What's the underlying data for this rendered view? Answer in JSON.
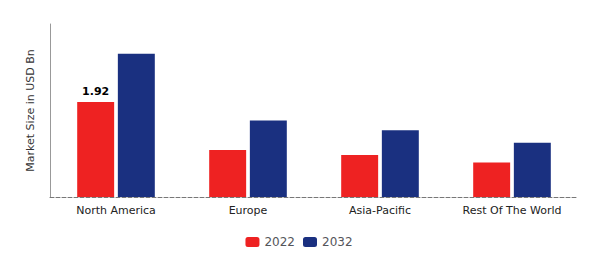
{
  "chart_data": {
    "type": "bar",
    "categories": [
      "North America",
      "Europe",
      "Asia-Pacific",
      "Rest Of The World"
    ],
    "series": [
      {
        "name": "2022",
        "color": "#ee2222",
        "values": [
          1.92,
          0.95,
          0.85,
          0.7
        ]
      },
      {
        "name": "2032",
        "color": "#1a3080",
        "values": [
          2.9,
          1.55,
          1.35,
          1.1
        ]
      }
    ],
    "ylabel": "Market Size in USD Bn",
    "ylim": [
      0,
      3.5
    ],
    "tick_labels": "x",
    "grid": false,
    "legend": "bottom",
    "annotations": [
      {
        "text": "1.92",
        "series": "2022",
        "x": "North America",
        "y": 1.92
      }
    ]
  }
}
